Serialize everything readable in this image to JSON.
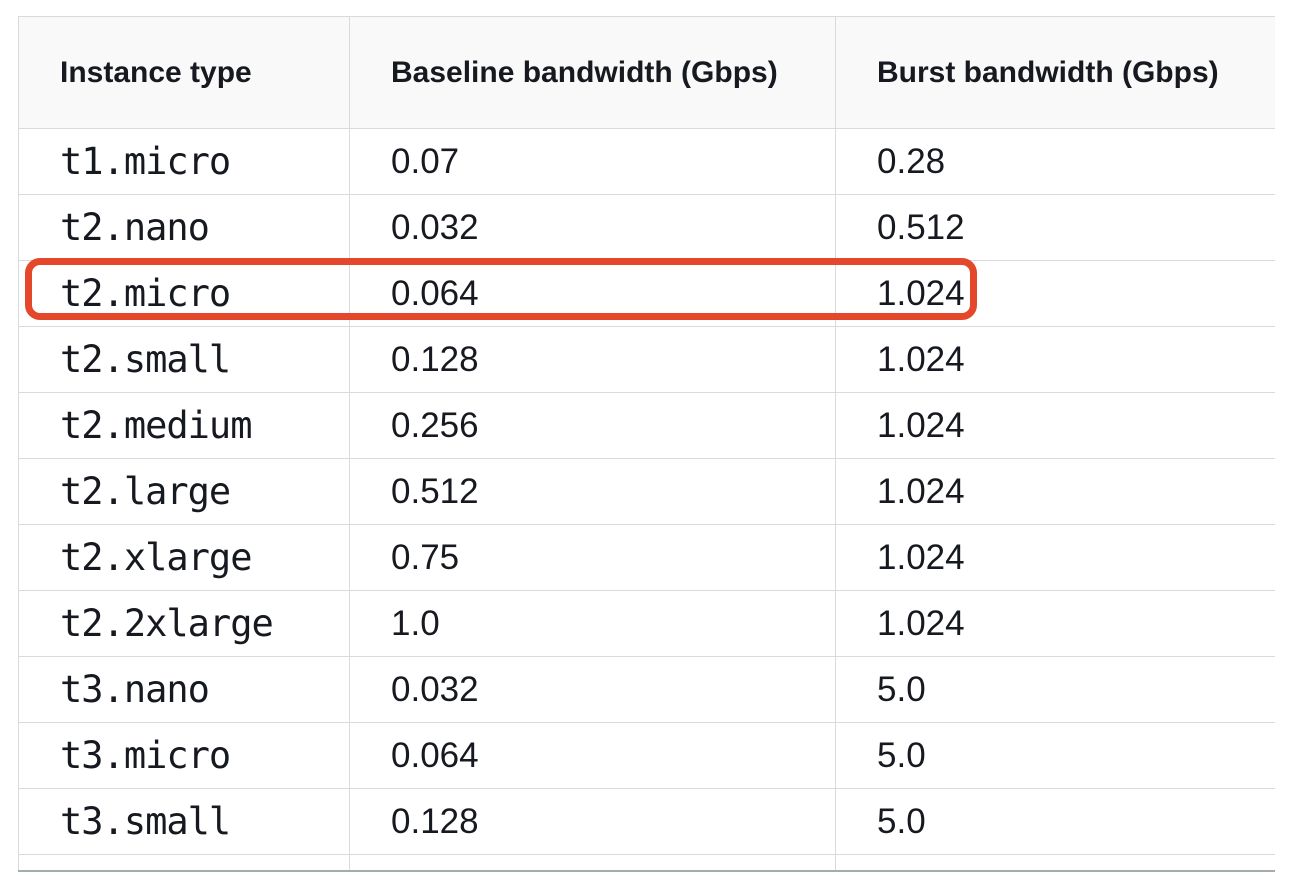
{
  "table": {
    "headers": [
      {
        "label": "Instance type"
      },
      {
        "label": "Baseline bandwidth (Gbps)"
      },
      {
        "label": "Burst bandwidth (Gbps)"
      }
    ],
    "rows": [
      [
        "t1.micro",
        "0.07",
        "0.28"
      ],
      [
        "t2.nano",
        "0.032",
        "0.512"
      ],
      [
        "t2.micro",
        "0.064",
        "1.024"
      ],
      [
        "t2.small",
        "0.128",
        "1.024"
      ],
      [
        "t2.medium",
        "0.256",
        "1.024"
      ],
      [
        "t2.large",
        "0.512",
        "1.024"
      ],
      [
        "t2.xlarge",
        "0.75",
        "1.024"
      ],
      [
        "t2.2xlarge",
        "1.0",
        "1.024"
      ],
      [
        "t3.nano",
        "0.032",
        "5.0"
      ],
      [
        "t3.micro",
        "0.064",
        "5.0"
      ],
      [
        "t3.small",
        "0.128",
        "5.0"
      ]
    ],
    "highlight": {
      "row": "t2.micro",
      "color": "#e5472b"
    }
  },
  "colors": {
    "header_background": "#f9f9fa",
    "row_background": "#ffffff",
    "border": "#d6dbdb",
    "bottom_edge": "#a4adad",
    "text": "#16191f",
    "highlight_border": "#e5472b"
  }
}
